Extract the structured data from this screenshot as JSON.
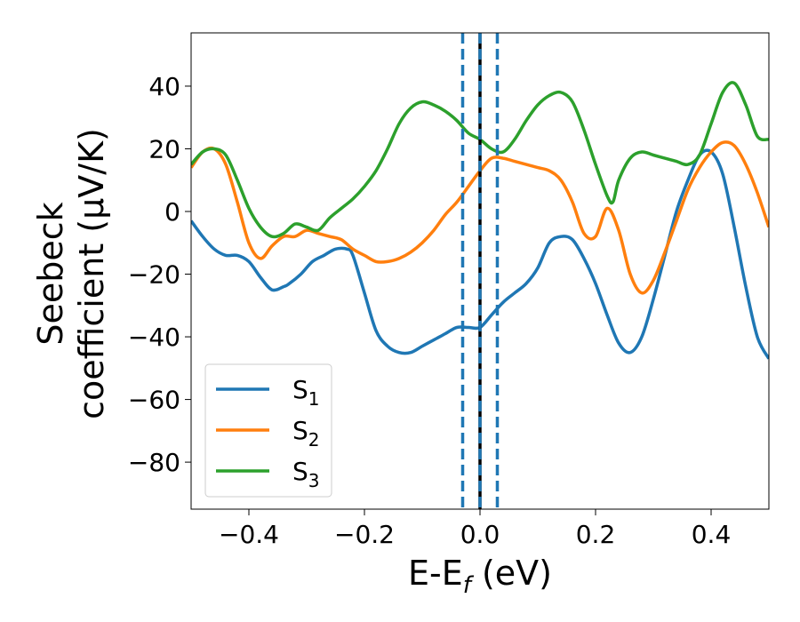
{
  "chart_data": {
    "type": "line",
    "xlabel": "E-E",
    "xlabel_sub": "f",
    "xlabel_unit": " (eV)",
    "ylabel_line1": "Seebeck",
    "ylabel_line2": "coefficient  (μV/K)",
    "xlim": [
      -0.5,
      0.5
    ],
    "ylim": [
      -95,
      57
    ],
    "xticks": [
      -0.4,
      -0.2,
      0.0,
      0.2,
      0.4
    ],
    "xtick_labels": [
      "−0.4",
      "−0.2",
      "0.0",
      "0.2",
      "0.4"
    ],
    "yticks": [
      40,
      20,
      0,
      -20,
      -40,
      -60,
      -80
    ],
    "ytick_labels": [
      "40",
      "20",
      "0",
      "−20",
      "−40",
      "−60",
      "−80"
    ],
    "grid": false,
    "legend_position": "lower-left",
    "vertical_lines": [
      {
        "x": -0.03,
        "style": "dashed",
        "color": "#1f77b4"
      },
      {
        "x": 0.0,
        "style": "solid",
        "color": "#000000"
      },
      {
        "x": 0.0,
        "style": "dashed",
        "color": "#1f77b4"
      },
      {
        "x": 0.03,
        "style": "dashed",
        "color": "#1f77b4"
      }
    ],
    "series": [
      {
        "name": "S",
        "sub": "1",
        "color": "#1f77b4",
        "x": [
          -0.5,
          -0.48,
          -0.46,
          -0.44,
          -0.42,
          -0.4,
          -0.38,
          -0.36,
          -0.34,
          -0.33,
          -0.31,
          -0.29,
          -0.27,
          -0.25,
          -0.23,
          -0.22,
          -0.2,
          -0.18,
          -0.16,
          -0.14,
          -0.12,
          -0.1,
          -0.08,
          -0.06,
          -0.04,
          -0.02,
          0.0,
          0.02,
          0.04,
          0.06,
          0.08,
          0.1,
          0.12,
          0.14,
          0.16,
          0.18,
          0.2,
          0.22,
          0.24,
          0.26,
          0.28,
          0.3,
          0.32,
          0.34,
          0.36,
          0.38,
          0.4,
          0.42,
          0.44,
          0.46,
          0.48,
          0.5
        ],
        "y": [
          -3,
          -8,
          -12,
          -14,
          -14,
          -16,
          -21,
          -25,
          -24,
          -23,
          -20,
          -16,
          -14,
          -12,
          -12,
          -14,
          -26,
          -38,
          -43,
          -45,
          -45,
          -43,
          -41,
          -39,
          -37,
          -37,
          -37,
          -33,
          -29,
          -26,
          -23,
          -18,
          -10,
          -8,
          -9,
          -15,
          -23,
          -33,
          -42,
          -45,
          -40,
          -28,
          -14,
          0,
          10,
          18,
          19,
          12,
          -5,
          -24,
          -40,
          -47
        ]
      },
      {
        "name": "S",
        "sub": "2",
        "color": "#ff7f0e",
        "x": [
          -0.5,
          -0.48,
          -0.46,
          -0.44,
          -0.42,
          -0.4,
          -0.38,
          -0.36,
          -0.34,
          -0.32,
          -0.3,
          -0.28,
          -0.26,
          -0.24,
          -0.22,
          -0.2,
          -0.18,
          -0.16,
          -0.14,
          -0.12,
          -0.1,
          -0.08,
          -0.06,
          -0.04,
          -0.02,
          0.0,
          0.02,
          0.04,
          0.06,
          0.08,
          0.1,
          0.12,
          0.14,
          0.16,
          0.18,
          0.2,
          0.22,
          0.24,
          0.26,
          0.28,
          0.3,
          0.32,
          0.34,
          0.36,
          0.38,
          0.4,
          0.42,
          0.44,
          0.46,
          0.48,
          0.5
        ],
        "y": [
          14,
          19,
          20,
          15,
          3,
          -10,
          -15,
          -11,
          -8,
          -8,
          -6,
          -7,
          -8,
          -9,
          -12,
          -14,
          -16,
          -16,
          -15,
          -13,
          -10,
          -6,
          -1,
          3,
          8,
          13,
          17,
          17,
          16,
          15,
          14,
          13,
          10,
          3,
          -7,
          -8,
          1,
          -6,
          -20,
          -26,
          -22,
          -13,
          -3,
          7,
          14,
          19,
          22,
          21,
          15,
          6,
          -5
        ]
      },
      {
        "name": "S",
        "sub": "3",
        "color": "#2ca02c",
        "x": [
          -0.5,
          -0.48,
          -0.46,
          -0.44,
          -0.42,
          -0.4,
          -0.38,
          -0.36,
          -0.34,
          -0.32,
          -0.3,
          -0.28,
          -0.26,
          -0.24,
          -0.22,
          -0.2,
          -0.18,
          -0.16,
          -0.14,
          -0.12,
          -0.1,
          -0.08,
          -0.06,
          -0.04,
          -0.02,
          0.0,
          0.02,
          0.04,
          0.06,
          0.08,
          0.1,
          0.12,
          0.14,
          0.16,
          0.18,
          0.2,
          0.22,
          0.23,
          0.24,
          0.26,
          0.28,
          0.3,
          0.32,
          0.34,
          0.36,
          0.38,
          0.4,
          0.42,
          0.44,
          0.46,
          0.48,
          0.5
        ],
        "y": [
          15,
          19,
          20,
          18,
          10,
          1,
          -5,
          -8,
          -7,
          -4,
          -5,
          -6,
          -2,
          1,
          4,
          8,
          13,
          20,
          28,
          33,
          35,
          34,
          32,
          29,
          25,
          23,
          20,
          19,
          23,
          29,
          34,
          37,
          38,
          35,
          26,
          15,
          5,
          3,
          10,
          17,
          19,
          18,
          17,
          16,
          15,
          18,
          28,
          38,
          41,
          34,
          24,
          23
        ]
      }
    ]
  }
}
